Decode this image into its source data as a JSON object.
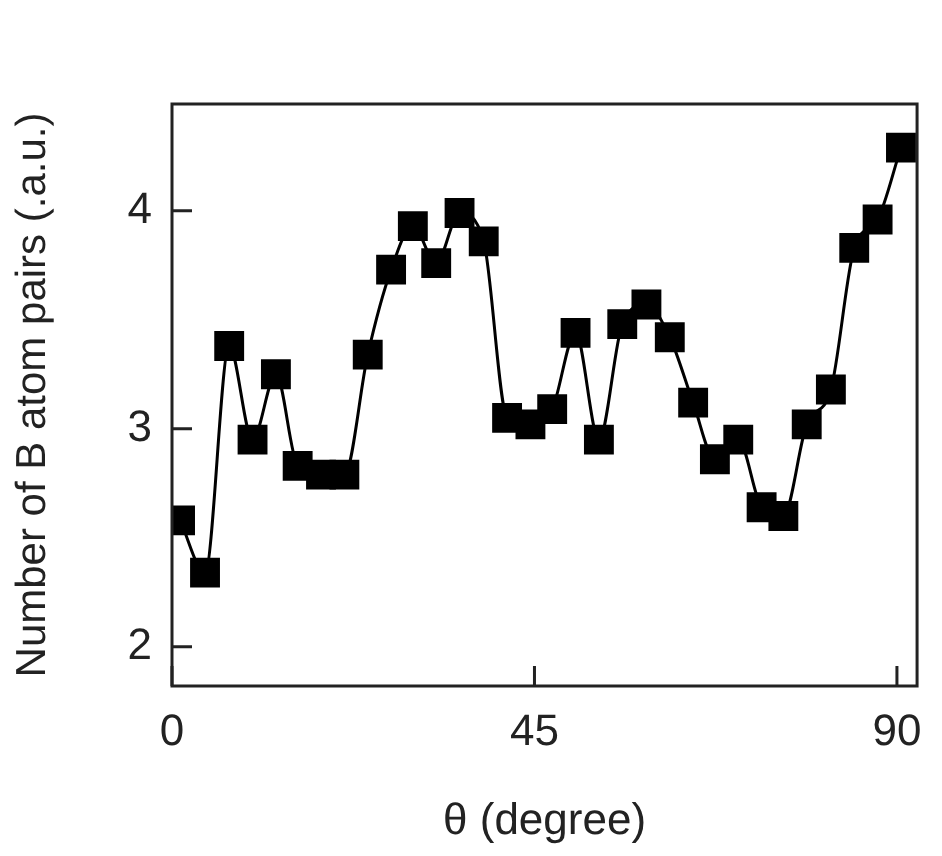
{
  "chart_data": {
    "type": "line",
    "xlabel": "θ (degree)",
    "ylabel": "Number of B atom pairs (.a.u.)",
    "x": [
      1.0,
      4.1,
      7.1,
      10.0,
      12.9,
      15.6,
      18.5,
      21.4,
      24.3,
      27.2,
      29.9,
      32.8,
      35.7,
      38.7,
      41.6,
      44.5,
      47.2,
      50.1,
      53.0,
      55.9,
      58.9,
      61.8,
      64.7,
      67.4,
      70.3,
      73.2,
      75.9,
      78.8,
      81.8,
      84.7,
      87.6,
      90.5
    ],
    "series": [
      {
        "color": "#000000",
        "values": [
          2.58,
          2.34,
          3.38,
          2.95,
          3.25,
          2.83,
          2.79,
          2.79,
          3.34,
          3.73,
          3.93,
          3.76,
          3.99,
          3.86,
          3.05,
          3.02,
          3.09,
          3.44,
          2.95,
          3.48,
          3.57,
          3.42,
          3.12,
          2.86,
          2.95,
          2.64,
          2.6,
          3.02,
          3.18,
          3.83,
          3.96,
          4.29
        ]
      }
    ],
    "xlim": [
      0,
      92.5
    ],
    "ylim": [
      1.82,
      4.49
    ],
    "xticks": [
      0,
      45,
      90
    ],
    "yticks": [
      2,
      3,
      4
    ],
    "marker": "square",
    "line_style": "solid",
    "grid": false,
    "legend": false
  }
}
